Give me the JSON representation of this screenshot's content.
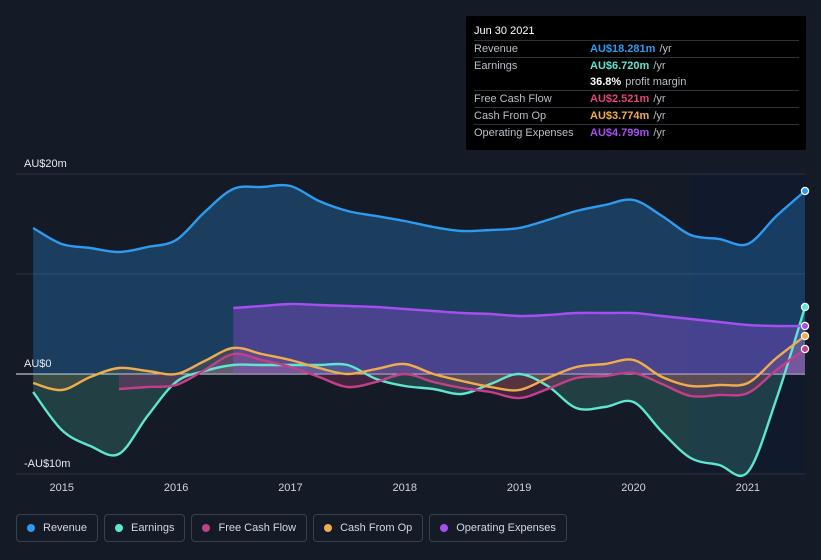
{
  "tooltip": {
    "date": "Jun 30 2021",
    "rows": [
      {
        "label": "Revenue",
        "value": "AU$18.281m",
        "unit": "/yr",
        "color": "#2d9cf0"
      },
      {
        "label": "Earnings",
        "value": "AU$6.720m",
        "unit": "/yr",
        "color": "#5ee6cf"
      },
      {
        "label": "",
        "value": "36.8%",
        "unit": "profit margin",
        "color": "#ffffff"
      },
      {
        "label": "Free Cash Flow",
        "value": "AU$2.521m",
        "unit": "/yr",
        "color": "#e0457b"
      },
      {
        "label": "Cash From Op",
        "value": "AU$3.774m",
        "unit": "/yr",
        "color": "#f0ad4e"
      },
      {
        "label": "Operating Expenses",
        "value": "AU$4.799m",
        "unit": "/yr",
        "color": "#a54ff0"
      }
    ]
  },
  "legend": [
    {
      "label": "Revenue",
      "color": "#2d9cf0"
    },
    {
      "label": "Earnings",
      "color": "#5ee6cf"
    },
    {
      "label": "Free Cash Flow",
      "color": "#c2408a"
    },
    {
      "label": "Cash From Op",
      "color": "#f0ad4e"
    },
    {
      "label": "Operating Expenses",
      "color": "#a54ff0"
    }
  ],
  "chart_data": {
    "type": "area",
    "y_tick_labels": [
      "AU$20m",
      "AU$0",
      "-AU$10m"
    ],
    "ylim": [
      -10,
      20
    ],
    "xlim": [
      2014.6,
      2021.5
    ],
    "x_ticks": [
      2015,
      2016,
      2017,
      2018,
      2019,
      2020,
      2021
    ],
    "x_tick_labels": [
      "2015",
      "2016",
      "2017",
      "2018",
      "2019",
      "2020",
      "2021"
    ],
    "forecast_start": 2020.5,
    "series": [
      {
        "name": "Revenue",
        "color": "#2d9cf0",
        "x": [
          2014.75,
          2015.0,
          2015.25,
          2015.5,
          2015.75,
          2016.0,
          2016.25,
          2016.5,
          2016.75,
          2017.0,
          2017.25,
          2017.5,
          2017.75,
          2018.0,
          2018.25,
          2018.5,
          2018.75,
          2019.0,
          2019.25,
          2019.5,
          2019.75,
          2020.0,
          2020.25,
          2020.5,
          2020.75,
          2021.0,
          2021.25,
          2021.5
        ],
        "values": [
          14.6,
          13.0,
          12.6,
          12.2,
          12.7,
          13.4,
          16.2,
          18.5,
          18.7,
          18.8,
          17.3,
          16.3,
          15.8,
          15.3,
          14.7,
          14.3,
          14.4,
          14.6,
          15.4,
          16.3,
          16.9,
          17.4,
          15.8,
          13.9,
          13.5,
          13.0,
          15.8,
          18.3
        ]
      },
      {
        "name": "Earnings",
        "color": "#5ee6cf",
        "x": [
          2014.75,
          2015.0,
          2015.25,
          2015.5,
          2015.75,
          2016.0,
          2016.25,
          2016.5,
          2016.75,
          2017.0,
          2017.25,
          2017.5,
          2017.75,
          2018.0,
          2018.25,
          2018.5,
          2018.75,
          2019.0,
          2019.25,
          2019.5,
          2019.75,
          2020.0,
          2020.25,
          2020.5,
          2020.75,
          2021.0,
          2021.25,
          2021.5
        ],
        "values": [
          -1.8,
          -5.6,
          -7.2,
          -8.0,
          -4.2,
          -0.8,
          0.3,
          0.9,
          0.9,
          0.9,
          0.9,
          0.9,
          -0.5,
          -1.2,
          -1.5,
          -2.0,
          -1.0,
          0.0,
          -1.2,
          -3.4,
          -3.3,
          -2.8,
          -5.8,
          -8.4,
          -9.1,
          -9.8,
          -2.5,
          6.7
        ]
      },
      {
        "name": "Free Cash Flow",
        "color": "#c2408a",
        "x": [
          2015.5,
          2015.75,
          2016.0,
          2016.25,
          2016.5,
          2016.75,
          2017.0,
          2017.25,
          2017.5,
          2017.75,
          2018.0,
          2018.25,
          2018.5,
          2018.75,
          2019.0,
          2019.25,
          2019.5,
          2019.75,
          2020.0,
          2020.25,
          2020.5,
          2020.75,
          2021.0,
          2021.25,
          2021.5
        ],
        "values": [
          -1.5,
          -1.3,
          -1.1,
          0.4,
          2.0,
          1.4,
          0.7,
          -0.3,
          -1.3,
          -0.8,
          0.0,
          -0.8,
          -1.4,
          -1.8,
          -2.4,
          -1.5,
          -0.4,
          -0.2,
          0.1,
          -1.0,
          -2.2,
          -2.1,
          -1.9,
          0.4,
          2.5
        ]
      },
      {
        "name": "Cash From Op",
        "color": "#f0ad4e",
        "x": [
          2014.75,
          2015.0,
          2015.25,
          2015.5,
          2015.75,
          2016.0,
          2016.25,
          2016.5,
          2016.75,
          2017.0,
          2017.25,
          2017.5,
          2017.75,
          2018.0,
          2018.25,
          2018.5,
          2018.75,
          2019.0,
          2019.25,
          2019.5,
          2019.75,
          2020.0,
          2020.25,
          2020.5,
          2020.75,
          2021.0,
          2021.25,
          2021.5
        ],
        "values": [
          -0.9,
          -1.6,
          -0.3,
          0.6,
          0.3,
          0.0,
          1.3,
          2.6,
          2.0,
          1.4,
          0.6,
          0.0,
          0.5,
          1.0,
          0.0,
          -0.7,
          -1.3,
          -1.6,
          -0.4,
          0.7,
          1.0,
          1.4,
          -0.3,
          -1.2,
          -1.1,
          -0.9,
          1.6,
          3.8
        ]
      },
      {
        "name": "Operating Expenses",
        "color": "#a54ff0",
        "x": [
          2016.5,
          2016.75,
          2017.0,
          2017.25,
          2017.5,
          2017.75,
          2018.0,
          2018.25,
          2018.5,
          2018.75,
          2019.0,
          2019.25,
          2019.5,
          2019.75,
          2020.0,
          2020.25,
          2020.5,
          2020.75,
          2021.0,
          2021.25,
          2021.5
        ],
        "values": [
          6.6,
          6.8,
          7.0,
          6.9,
          6.8,
          6.7,
          6.5,
          6.3,
          6.1,
          6.0,
          5.8,
          5.9,
          6.1,
          6.1,
          6.1,
          5.8,
          5.5,
          5.2,
          4.9,
          4.8,
          4.8
        ]
      }
    ]
  }
}
